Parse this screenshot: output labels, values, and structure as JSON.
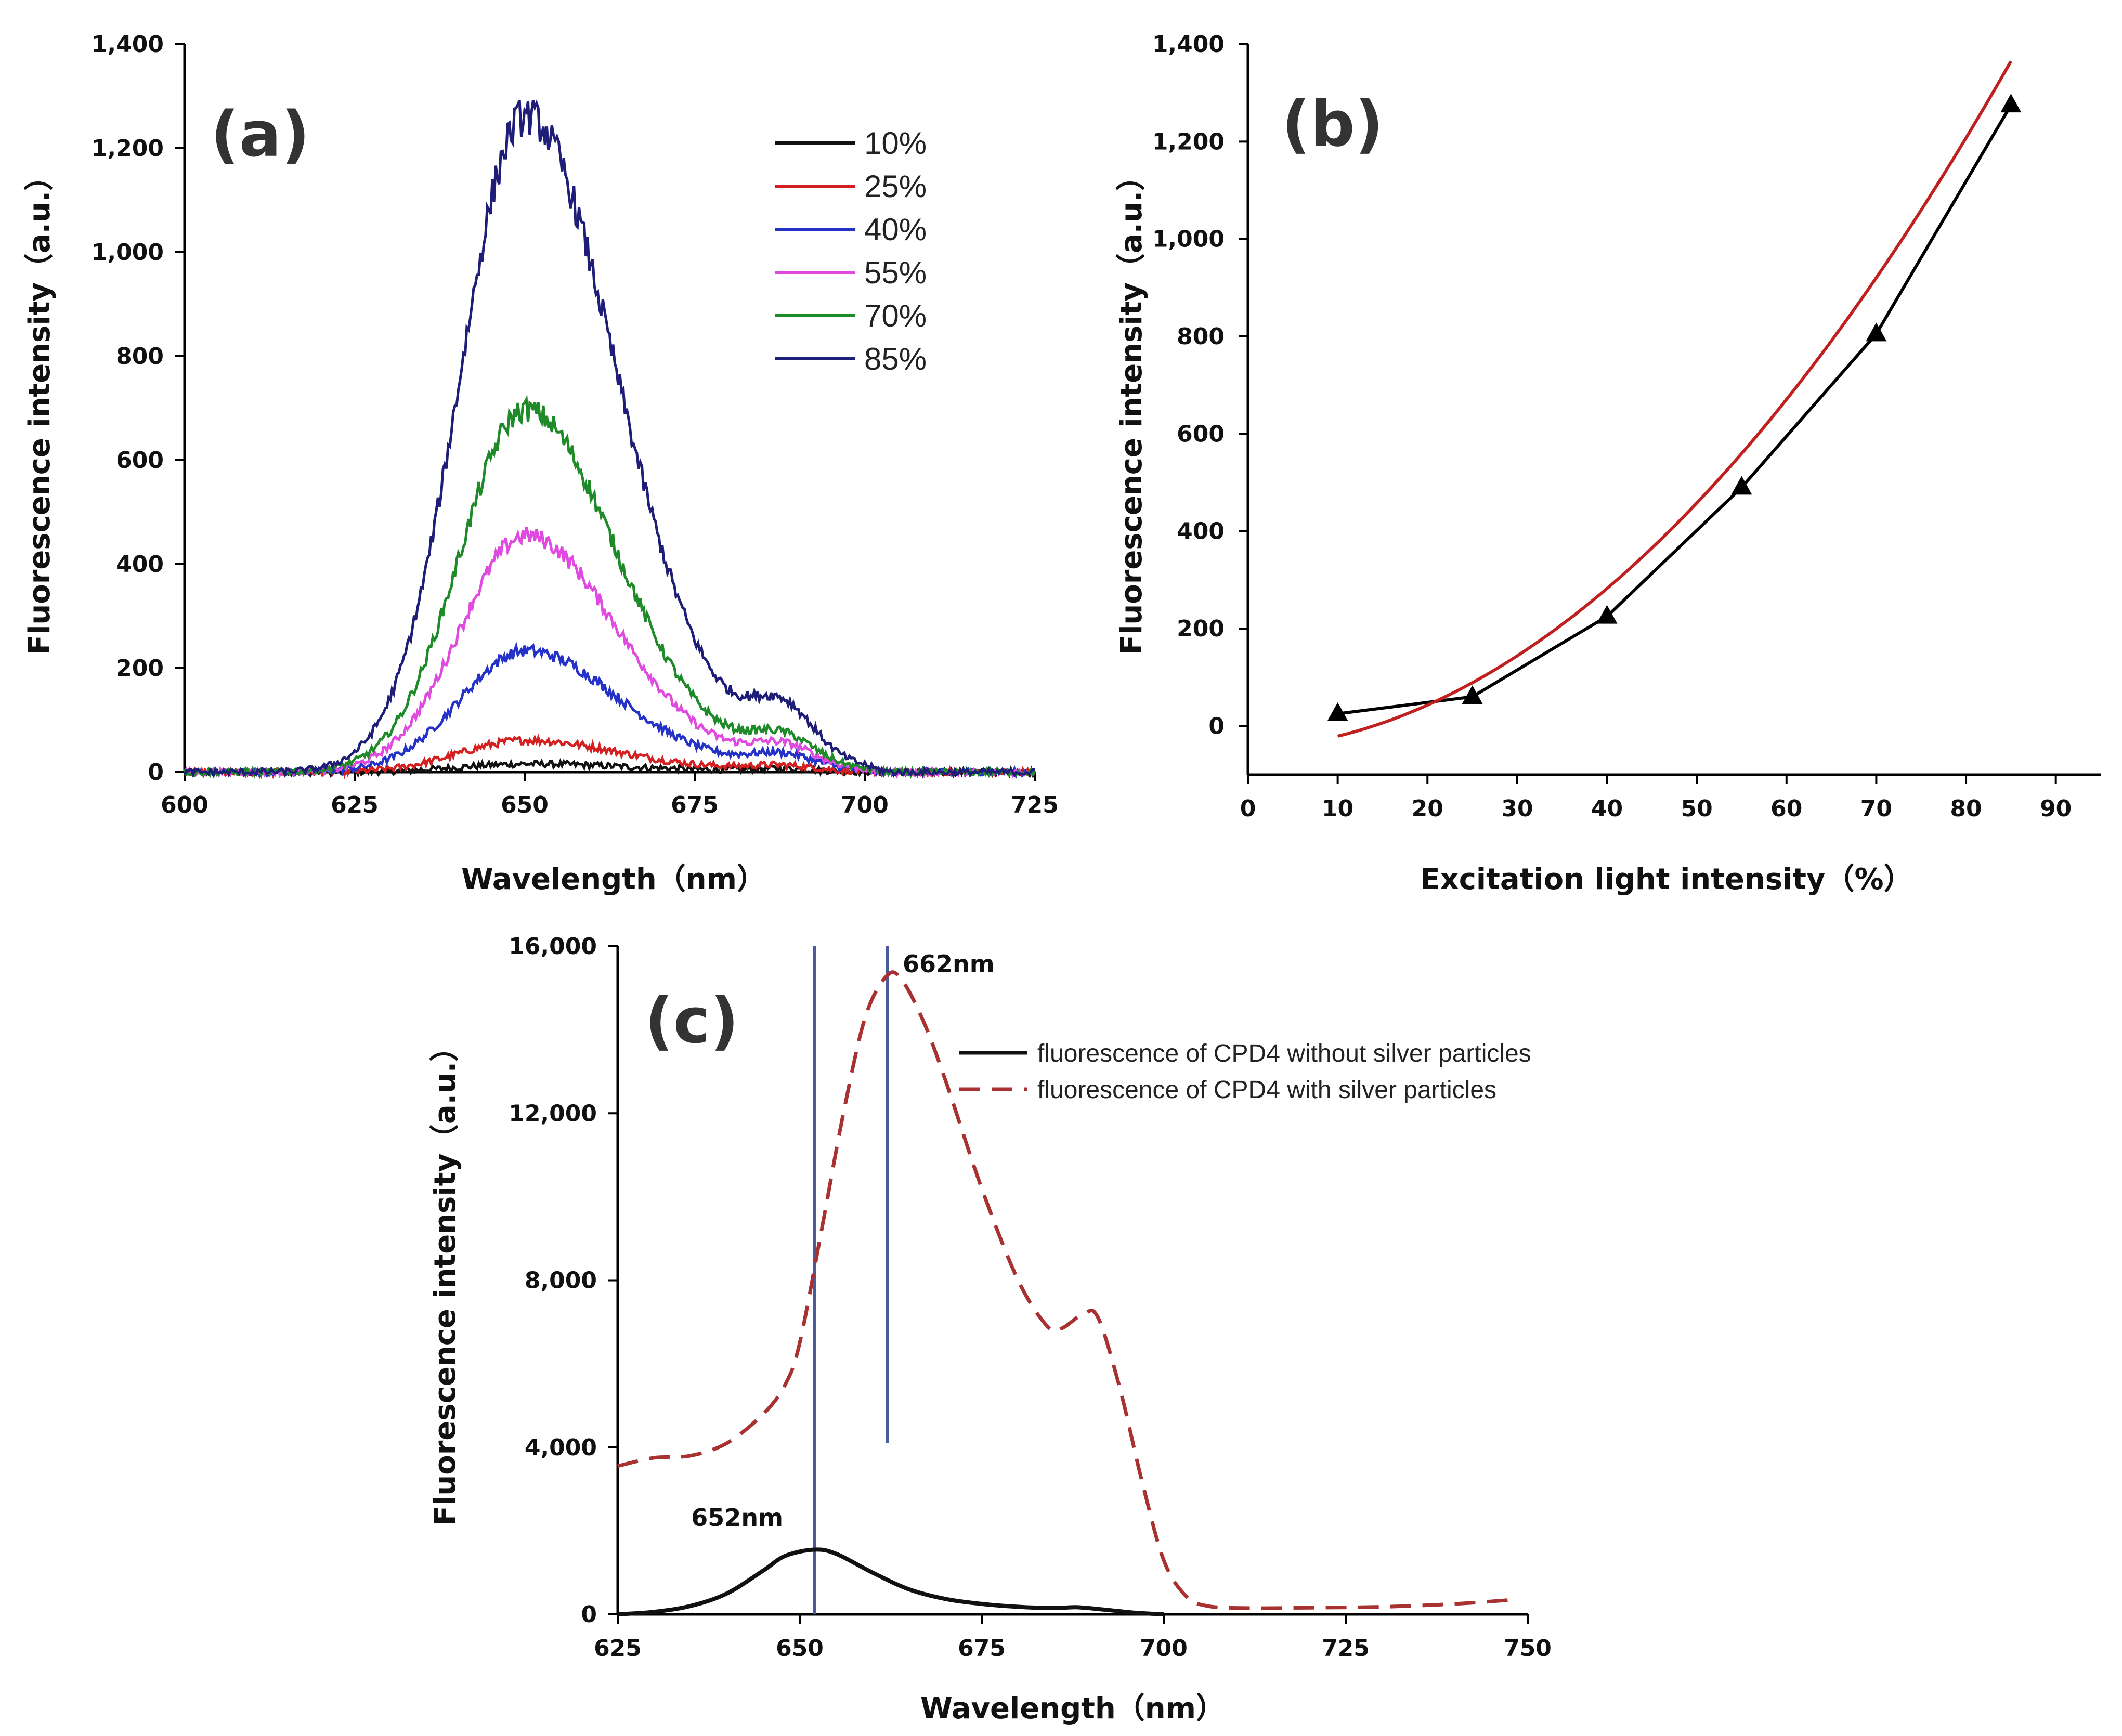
{
  "chart_data": [
    {
      "id": "a",
      "panel_label": "(a)",
      "type": "line",
      "xlabel": "Wavelength（nm）",
      "ylabel": "Fluorescence intensity（a.u.）",
      "xlim": [
        600,
        725
      ],
      "ylim": [
        0,
        1400
      ],
      "xticks": [
        "600",
        "625",
        "650",
        "675",
        "700",
        "725"
      ],
      "yticks": [
        "0",
        "200",
        "400",
        "600",
        "800",
        "1,000",
        "1,200",
        "1,400"
      ],
      "legend_position": "top-right",
      "series": [
        {
          "name": "10%",
          "color": "#111111",
          "peak": 15,
          "shoulder": 8
        },
        {
          "name": "25%",
          "color": "#d42020",
          "peak": 60,
          "shoulder": 15
        },
        {
          "name": "40%",
          "color": "#2432c8",
          "peak": 230,
          "shoulder": 40
        },
        {
          "name": "55%",
          "color": "#e04ae0",
          "peak": 450,
          "shoulder": 60
        },
        {
          "name": "70%",
          "color": "#1e8a28",
          "peak": 690,
          "shoulder": 80
        },
        {
          "name": "85%",
          "color": "#1e1e78",
          "peak": 1250,
          "shoulder": 145
        }
      ],
      "peak_wavelength": 650,
      "shoulder_wavelength": 688,
      "baseline_end": 700
    },
    {
      "id": "b",
      "panel_label": "(b)",
      "type": "scatter",
      "xlabel": "Excitation light intensity（%）",
      "ylabel": "Fluorescence intensity（a.u.）",
      "xlim": [
        0,
        95
      ],
      "ylim": [
        -100,
        1400
      ],
      "xticks": [
        "0",
        "10",
        "20",
        "30",
        "40",
        "50",
        "60",
        "70",
        "80",
        "90"
      ],
      "yticks": [
        "0",
        "200",
        "400",
        "600",
        "800",
        "1,000",
        "1,200",
        "1,400"
      ],
      "points": {
        "x": [
          10,
          25,
          40,
          55,
          70,
          85
        ],
        "y": [
          25,
          60,
          225,
          490,
          805,
          1275
        ]
      },
      "marker": "triangle",
      "line_color": "#000000",
      "fit": {
        "type": "quadratic",
        "color": "#c02020",
        "x_range": [
          10,
          85
        ],
        "coefficients": [
          -47.7,
          0.81,
          0.186
        ]
      }
    },
    {
      "id": "c",
      "panel_label": "(c)",
      "type": "line",
      "xlabel": "Wavelength（nm）",
      "ylabel": "Fluorescence intensity（a.u.）",
      "xlim": [
        625,
        750
      ],
      "ylim": [
        0,
        16000
      ],
      "xticks": [
        "625",
        "650",
        "675",
        "700",
        "725",
        "750"
      ],
      "yticks": [
        "0",
        "4,000",
        "8,000",
        "12,000",
        "16,000"
      ],
      "legend_position": "top-right",
      "series": [
        {
          "name": "fluorescence of CPD4 without silver particles",
          "color": "#111111",
          "style": "solid",
          "x": [
            625,
            630,
            635,
            640,
            645,
            648,
            652,
            655,
            660,
            665,
            670,
            675,
            680,
            685,
            688,
            692,
            696,
            700
          ],
          "y": [
            0,
            60,
            200,
            500,
            1050,
            1400,
            1550,
            1450,
            1000,
            600,
            370,
            250,
            180,
            150,
            170,
            110,
            40,
            0
          ]
        },
        {
          "name": "fluorescence of CPD4 with silver particles",
          "color": "#a83232",
          "style": "dashed",
          "x": [
            625,
            630,
            635,
            640,
            645,
            648,
            650,
            653,
            656,
            659,
            662,
            664,
            667,
            670,
            675,
            680,
            684,
            686,
            689,
            691,
            694,
            697,
            700,
            703,
            706,
            712,
            720,
            730,
            740,
            748
          ],
          "y": [
            3550,
            3750,
            3800,
            4100,
            4800,
            5500,
            6500,
            9200,
            12000,
            14300,
            15300,
            15200,
            14200,
            12800,
            10200,
            8000,
            6900,
            6850,
            7200,
            7100,
            5400,
            3200,
            1300,
            450,
            200,
            150,
            160,
            180,
            250,
            350
          ]
        }
      ],
      "annotations": [
        {
          "text": "652nm",
          "x": 652,
          "y": 1550,
          "line": [
            652,
            0,
            16000
          ]
        },
        {
          "text": "662nm",
          "x": 662,
          "y": 15300,
          "line": [
            662,
            4100,
            16000
          ]
        }
      ],
      "vline_color": "#4a5a9a"
    }
  ]
}
